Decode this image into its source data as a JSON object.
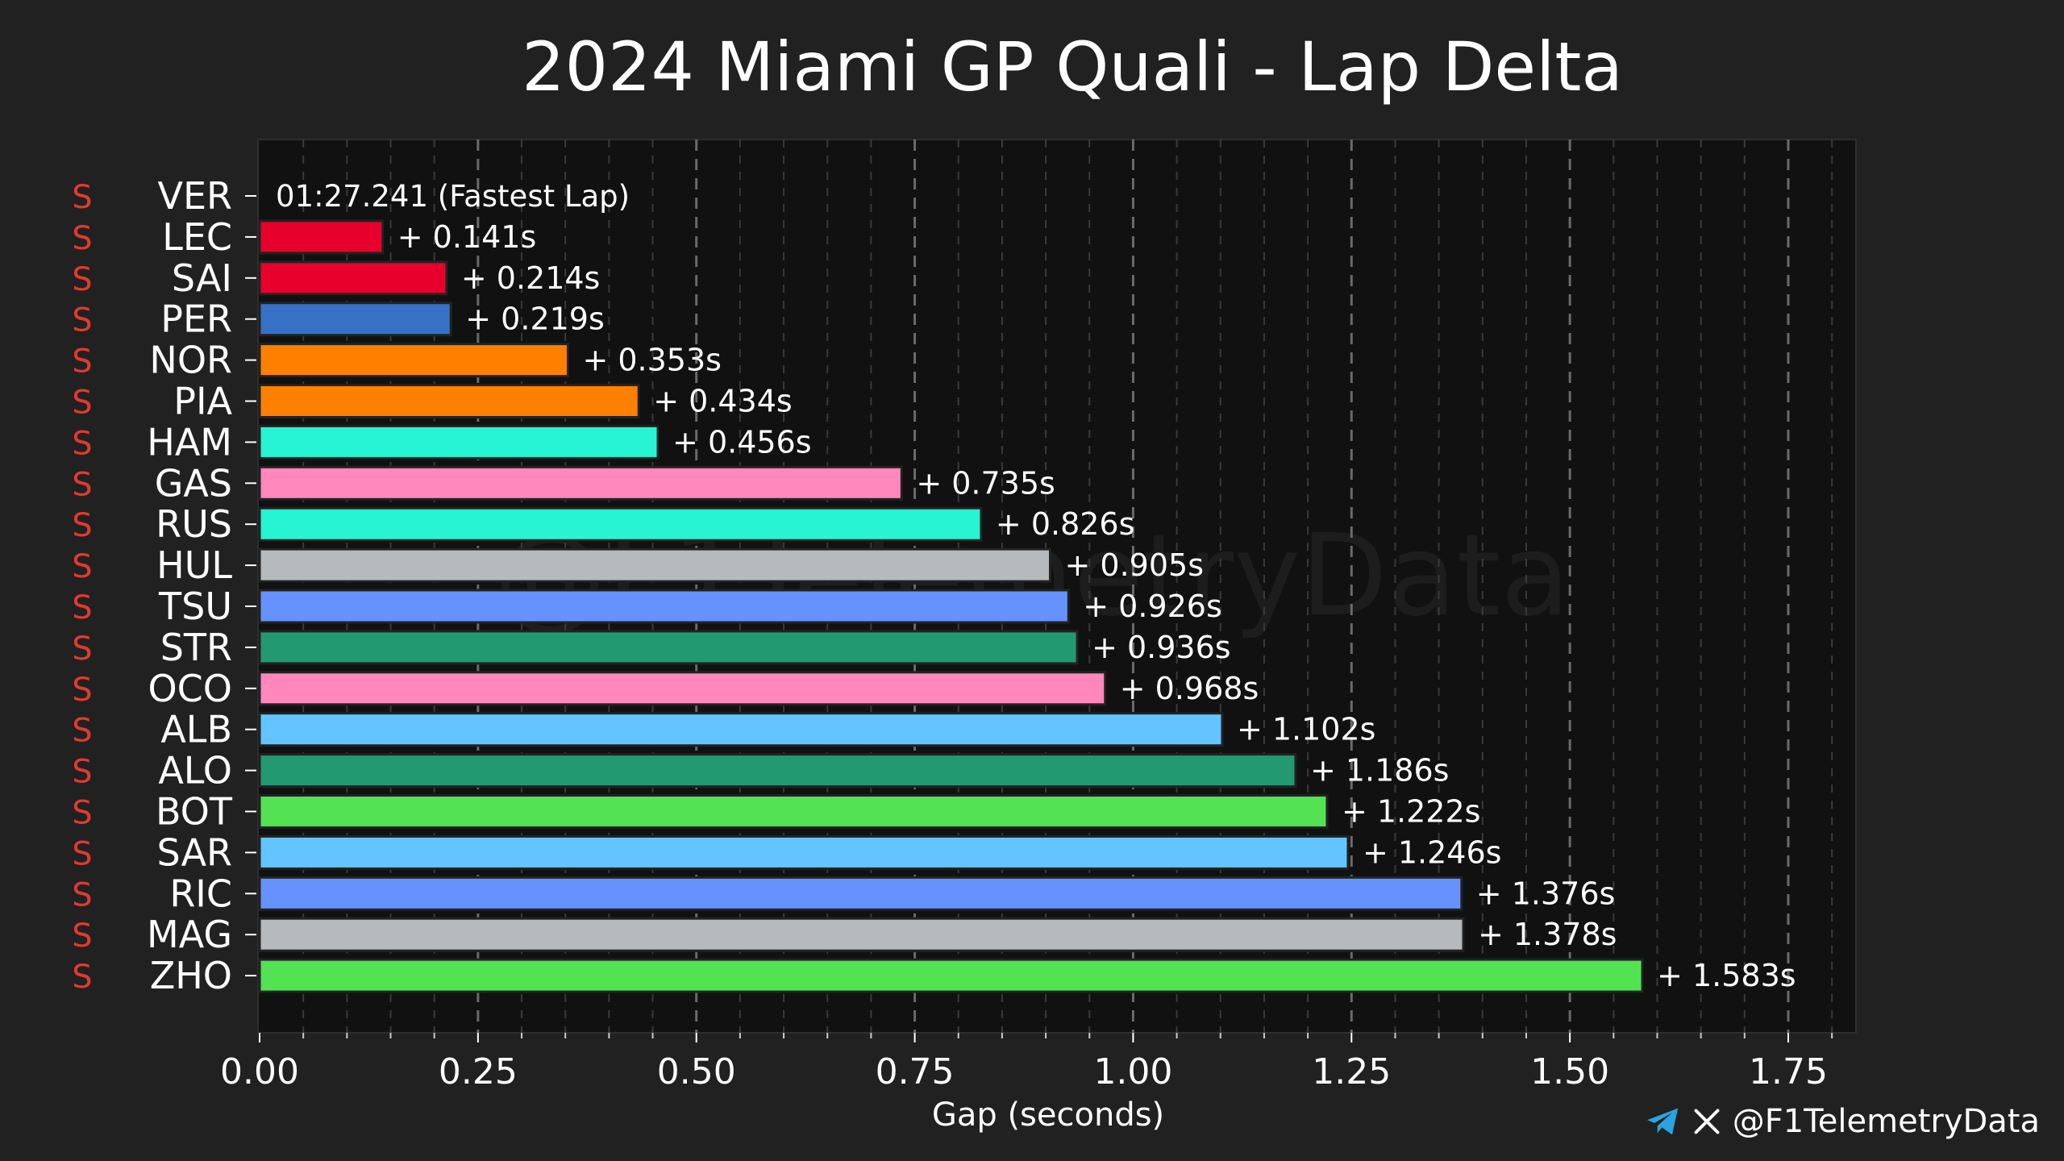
{
  "chart_data": {
    "type": "bar",
    "orientation": "horizontal",
    "title": "2024 Miami GP Quali - Lap Delta",
    "xlabel": "Gap (seconds)",
    "ylabel": "",
    "xlim": [
      0,
      1.83
    ],
    "xticks": [
      "0.00",
      "0.25",
      "0.50",
      "0.75",
      "1.00",
      "1.25",
      "1.50",
      "1.75"
    ],
    "xtick_values": [
      0,
      0.25,
      0.5,
      0.75,
      1.0,
      1.25,
      1.5,
      1.75
    ],
    "grid": true,
    "watermark": "@F1TelemetryData",
    "fastest_lap_label": "01:27.241 (Fastest Lap)",
    "drivers": [
      {
        "tyre": "S",
        "code": "VER",
        "gap": 0.0,
        "label": "",
        "color": "#3671C6"
      },
      {
        "tyre": "S",
        "code": "LEC",
        "gap": 0.141,
        "label": "+ 0.141s",
        "color": "#E8002D"
      },
      {
        "tyre": "S",
        "code": "SAI",
        "gap": 0.214,
        "label": "+ 0.214s",
        "color": "#E8002D"
      },
      {
        "tyre": "S",
        "code": "PER",
        "gap": 0.219,
        "label": "+ 0.219s",
        "color": "#3671C6"
      },
      {
        "tyre": "S",
        "code": "NOR",
        "gap": 0.353,
        "label": "+ 0.353s",
        "color": "#FF8000"
      },
      {
        "tyre": "S",
        "code": "PIA",
        "gap": 0.434,
        "label": "+ 0.434s",
        "color": "#FF8000"
      },
      {
        "tyre": "S",
        "code": "HAM",
        "gap": 0.456,
        "label": "+ 0.456s",
        "color": "#27F4D2"
      },
      {
        "tyre": "S",
        "code": "GAS",
        "gap": 0.735,
        "label": "+ 0.735s",
        "color": "#FF87BC"
      },
      {
        "tyre": "S",
        "code": "RUS",
        "gap": 0.826,
        "label": "+ 0.826s",
        "color": "#27F4D2"
      },
      {
        "tyre": "S",
        "code": "HUL",
        "gap": 0.905,
        "label": "+ 0.905s",
        "color": "#B6BABD"
      },
      {
        "tyre": "S",
        "code": "TSU",
        "gap": 0.926,
        "label": "+ 0.926s",
        "color": "#6692FF"
      },
      {
        "tyre": "S",
        "code": "STR",
        "gap": 0.936,
        "label": "+ 0.936s",
        "color": "#229971"
      },
      {
        "tyre": "S",
        "code": "OCO",
        "gap": 0.968,
        "label": "+ 0.968s",
        "color": "#FF87BC"
      },
      {
        "tyre": "S",
        "code": "ALB",
        "gap": 1.102,
        "label": "+ 1.102s",
        "color": "#64C4FF"
      },
      {
        "tyre": "S",
        "code": "ALO",
        "gap": 1.186,
        "label": "+ 1.186s",
        "color": "#229971"
      },
      {
        "tyre": "S",
        "code": "BOT",
        "gap": 1.222,
        "label": "+ 1.222s",
        "color": "#52E252"
      },
      {
        "tyre": "S",
        "code": "SAR",
        "gap": 1.246,
        "label": "+ 1.246s",
        "color": "#64C4FF"
      },
      {
        "tyre": "S",
        "code": "RIC",
        "gap": 1.376,
        "label": "+ 1.376s",
        "color": "#6692FF"
      },
      {
        "tyre": "S",
        "code": "MAG",
        "gap": 1.378,
        "label": "+ 1.378s",
        "color": "#B6BABD"
      },
      {
        "tyre": "S",
        "code": "ZHO",
        "gap": 1.583,
        "label": "+ 1.583s",
        "color": "#52E252"
      }
    ],
    "tyre_color": "#E03A2F"
  },
  "footer": {
    "handle": "@F1TelemetryData",
    "icons": [
      "telegram-icon",
      "x-icon"
    ]
  }
}
